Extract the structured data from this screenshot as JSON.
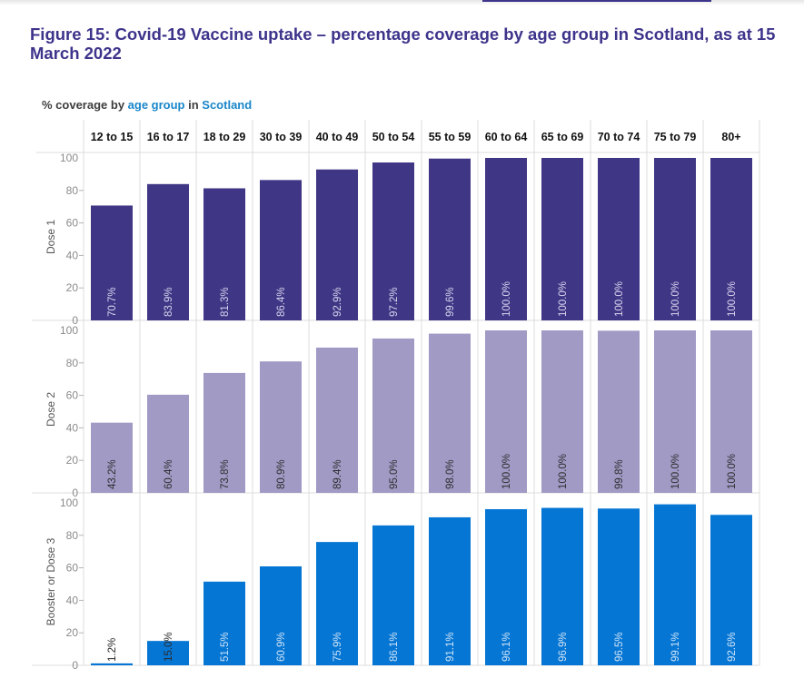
{
  "title": "Figure 15: Covid-19 Vaccine uptake – percentage coverage by age group in Scotland, as at 15 March 2022",
  "subtitle": {
    "prefix": "% coverage by ",
    "highlight1": "age group",
    "middle": " in ",
    "highlight2": "Scotland"
  },
  "chart_data": {
    "type": "bar",
    "title": "% coverage by age group in Scotland",
    "categories": [
      "12 to 15",
      "16 to 17",
      "18 to 29",
      "30 to 39",
      "40 to 49",
      "50 to 54",
      "55 to 59",
      "60 to 64",
      "65 to 69",
      "70 to 74",
      "75 to 79",
      "80+"
    ],
    "ylim": [
      0,
      100
    ],
    "yticks": [
      0,
      20,
      40,
      60,
      80,
      100
    ],
    "grid": true,
    "legend": "none",
    "series": [
      {
        "name": "Dose 1",
        "color": "#3f3685",
        "label_color": "#d8d4ee",
        "values": [
          70.7,
          83.9,
          81.3,
          86.4,
          92.9,
          97.2,
          99.6,
          100.0,
          100.0,
          100.0,
          100.0,
          100.0
        ],
        "labels": [
          "70.7%",
          "83.9%",
          "81.3%",
          "86.4%",
          "92.9%",
          "97.2%",
          "99.6%",
          "100.0%",
          "100.0%",
          "100.0%",
          "100.0%",
          "100.0%"
        ]
      },
      {
        "name": "Dose 2",
        "color": "#a09ac5",
        "label_color": "#2f2f2f",
        "values": [
          43.2,
          60.4,
          73.8,
          80.9,
          89.4,
          95.0,
          98.0,
          100.0,
          100.0,
          99.8,
          100.0,
          100.0
        ],
        "labels": [
          "43.2%",
          "60.4%",
          "73.8%",
          "80.9%",
          "89.4%",
          "95.0%",
          "98.0%",
          "100.0%",
          "100.0%",
          "99.8%",
          "100.0%",
          "100.0%"
        ]
      },
      {
        "name": "Booster or Dose 3",
        "color": "#0676d4",
        "label_color": "#cfe4f7",
        "values": [
          1.2,
          15.0,
          51.5,
          60.9,
          75.9,
          86.1,
          91.1,
          96.1,
          96.9,
          96.5,
          99.1,
          92.6
        ],
        "labels": [
          "1.2%",
          "15.0%",
          "51.5%",
          "60.9%",
          "75.9%",
          "86.1%",
          "91.1%",
          "96.1%",
          "96.9%",
          "96.5%",
          "99.1%",
          "92.6%"
        ]
      }
    ]
  }
}
